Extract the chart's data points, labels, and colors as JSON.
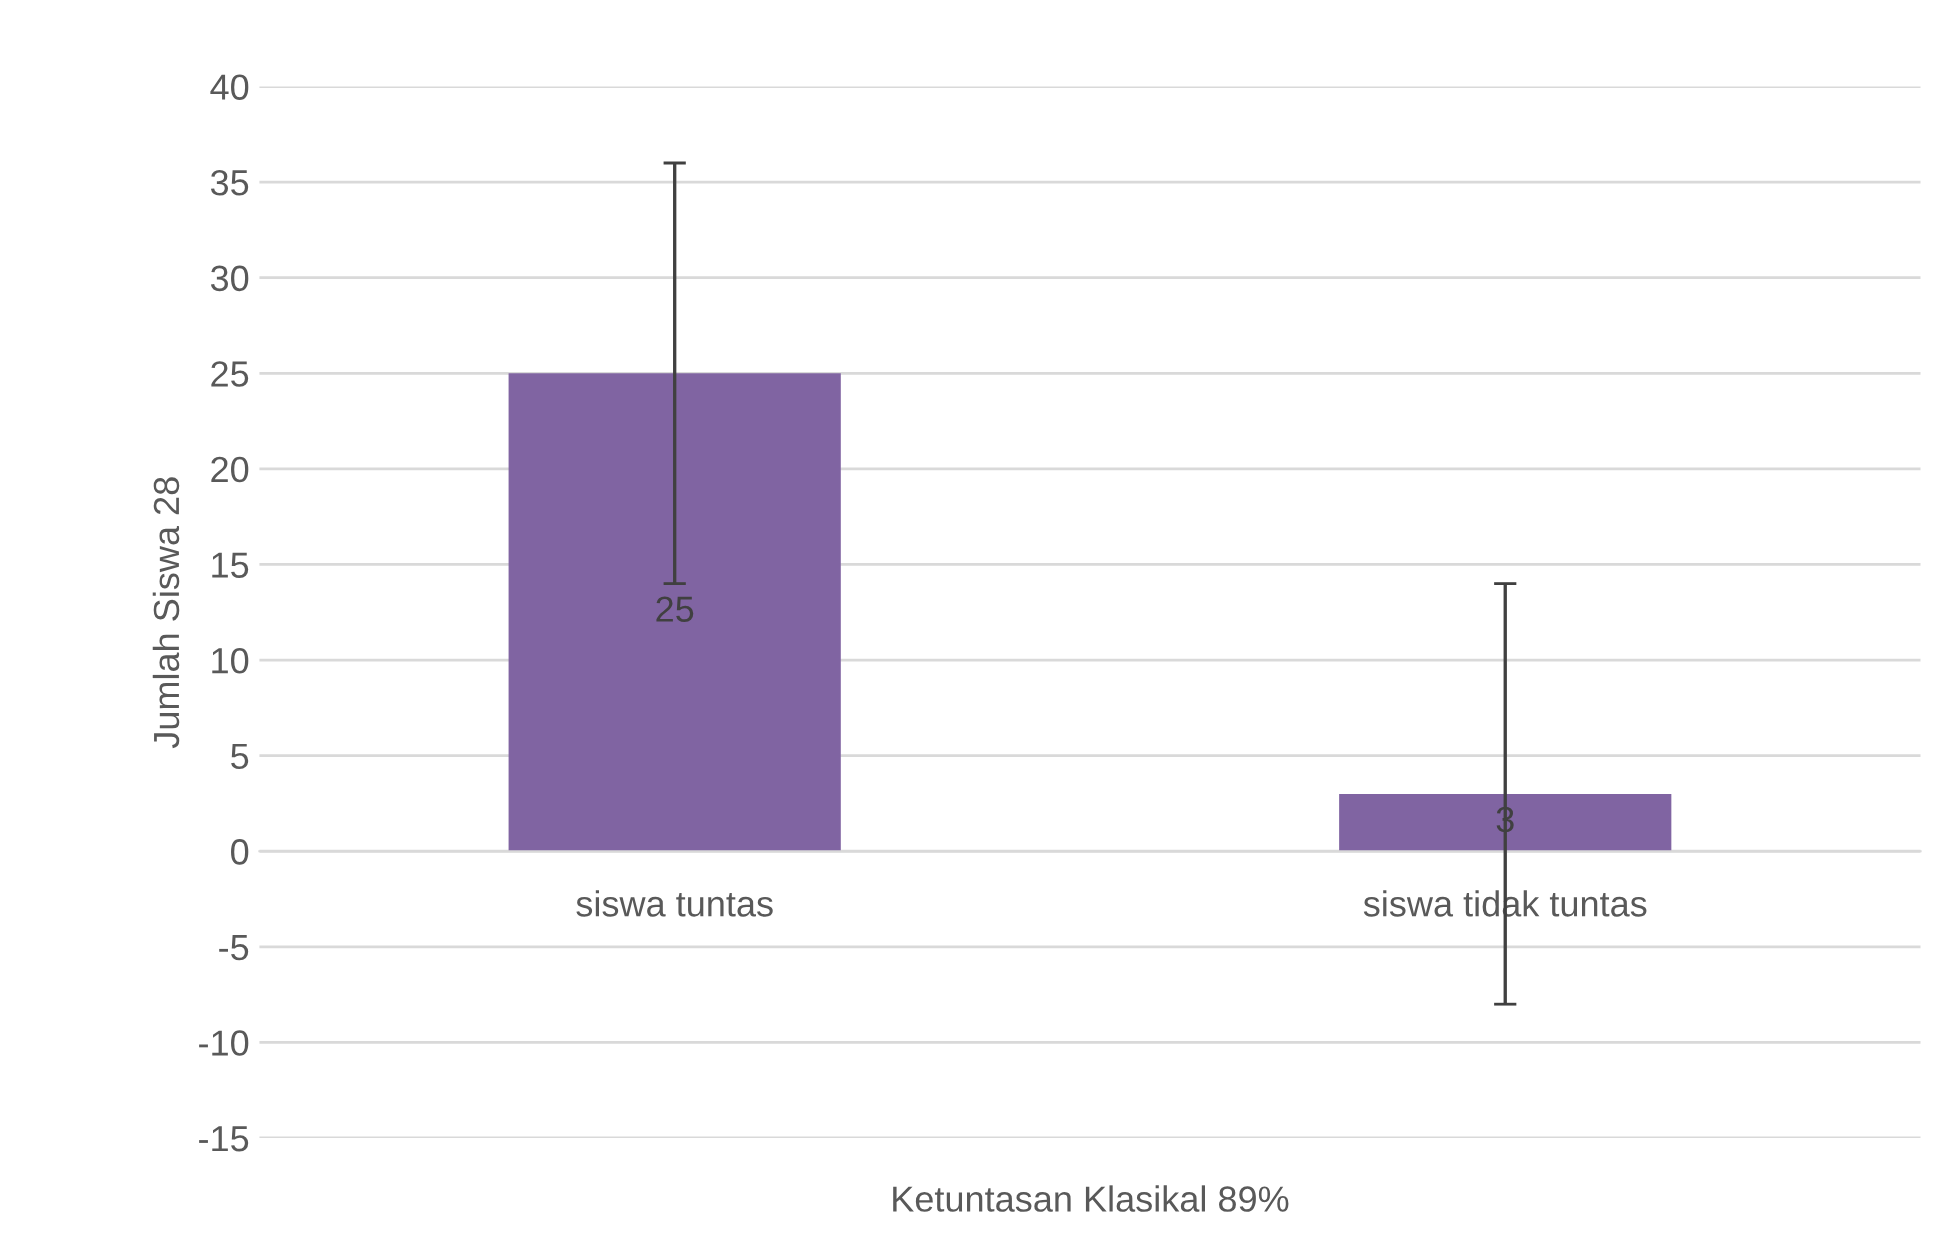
{
  "chart_data": {
    "type": "bar",
    "xlabel": "Ketuntasan Klasikal 89%",
    "ylabel": "Jumlah Siswa 28",
    "categories": [
      "siswa tuntas",
      "siswa tidak tuntas"
    ],
    "values": [
      25,
      3
    ],
    "color": "#8064a2",
    "errors": [
      11,
      11
    ],
    "ylim": [
      -15,
      40
    ],
    "yticks": [
      -15,
      -10,
      -5,
      0,
      5,
      10,
      15,
      20,
      25,
      30,
      35,
      40
    ],
    "grid": "y",
    "data_labels": true
  }
}
